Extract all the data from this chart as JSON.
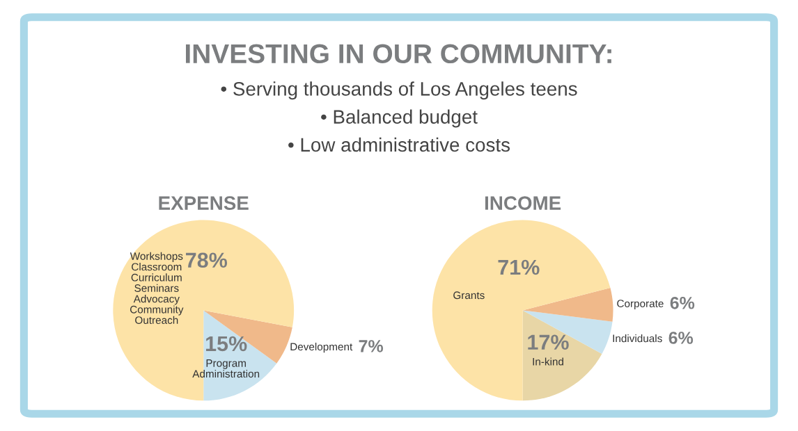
{
  "chart_data": [
    {
      "type": "other",
      "title": "INVESTING IN OUR COMMUNITY:",
      "annotations": [
        "• Serving thousands of Los Angeles teens",
        "• Balanced budget",
        "• Low administrative costs"
      ]
    },
    {
      "type": "pie",
      "title": "EXPENSE",
      "categories": [
        "Program\nAdministration",
        "Development",
        "Workshops\nClassroom\nCurriculum\nSeminars\nAdvocacy\nCommunity\nOutreach"
      ],
      "values": [
        15,
        7,
        78
      ],
      "colors": [
        "#c9e3ef",
        "#f0b98a",
        "#fde3a7"
      ],
      "value_labels": [
        "15%",
        "7%",
        "78%"
      ]
    },
    {
      "type": "pie",
      "title": "INCOME",
      "categories": [
        "In-kind",
        "Individuals",
        "Corporate",
        "Grants"
      ],
      "values": [
        17,
        6,
        6,
        71
      ],
      "colors": [
        "#e8d6a6",
        "#c9e3ef",
        "#f0b98a",
        "#fde3a7"
      ],
      "value_labels": [
        "17%",
        "6%",
        "6%",
        "71%"
      ]
    }
  ]
}
